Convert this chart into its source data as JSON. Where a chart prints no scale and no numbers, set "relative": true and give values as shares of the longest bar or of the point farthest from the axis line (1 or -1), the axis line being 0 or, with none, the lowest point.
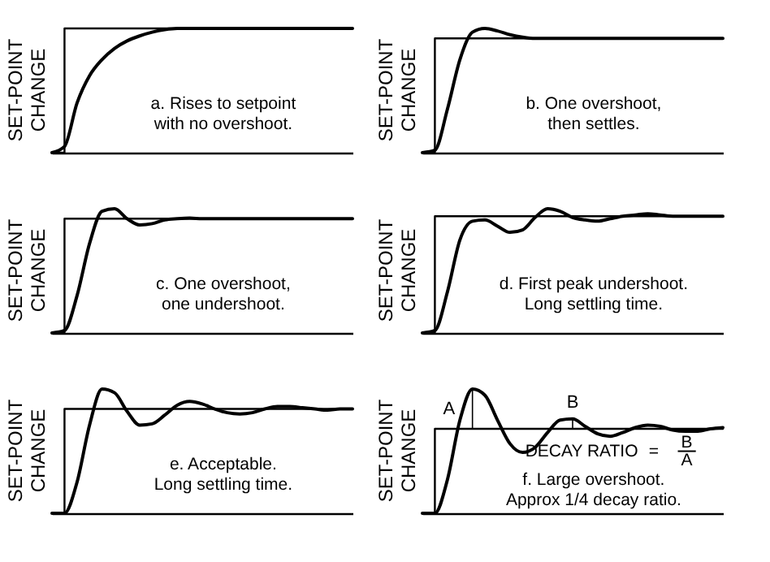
{
  "chart_data": [
    {
      "type": "line",
      "relative": true,
      "legend": false,
      "grid": false,
      "tick_labels": false,
      "ylabel": "SET-POINT\nCHANGE",
      "categories": [
        null,
        null,
        null,
        null,
        null,
        null,
        null,
        null,
        null,
        null,
        null,
        null,
        null,
        null,
        null,
        null,
        null,
        null,
        null,
        null,
        null,
        null,
        null,
        null,
        null
      ],
      "annotations": [
        "a.  Rises to setpoint\nwith no overshoot."
      ],
      "series": [
        {
          "type": "step",
          "color": "#000000",
          "values": [
            0,
            1,
            1,
            1,
            1,
            1,
            1,
            1,
            1,
            1,
            1,
            1,
            1,
            1,
            1,
            1,
            1,
            1,
            1,
            1,
            1,
            1,
            1,
            1,
            1
          ]
        },
        {
          "type": "line",
          "color": "#000000",
          "values": [
            0,
            0.05,
            0.4,
            0.62,
            0.75,
            0.84,
            0.9,
            0.94,
            0.97,
            0.99,
            1,
            1,
            1,
            1,
            1,
            1,
            1,
            1,
            1,
            1,
            1,
            1,
            1,
            1,
            1
          ]
        }
      ]
    },
    {
      "type": "line",
      "relative": true,
      "legend": false,
      "grid": false,
      "tick_labels": false,
      "ylabel": "SET-POINT\nCHANGE",
      "categories": [
        null,
        null,
        null,
        null,
        null,
        null,
        null,
        null,
        null,
        null,
        null,
        null,
        null,
        null,
        null,
        null,
        null,
        null,
        null,
        null,
        null,
        null,
        null,
        null,
        null
      ],
      "annotations": [
        "b.  One overshoot,\nthen settles."
      ],
      "series": [
        {
          "type": "step",
          "color": "#000000",
          "values": [
            0,
            0.92,
            0.92,
            0.92,
            0.92,
            0.92,
            0.92,
            0.92,
            0.92,
            0.92,
            0.92,
            0.92,
            0.92,
            0.92,
            0.92,
            0.92,
            0.92,
            0.92,
            0.92,
            0.92,
            0.92,
            0.92,
            0.92,
            0.92,
            0.92
          ]
        },
        {
          "type": "line",
          "color": "#000000",
          "values": [
            0,
            0.02,
            0.35,
            0.75,
            0.97,
            1,
            0.98,
            0.95,
            0.93,
            0.92,
            0.92,
            0.92,
            0.92,
            0.92,
            0.92,
            0.92,
            0.92,
            0.92,
            0.92,
            0.92,
            0.92,
            0.92,
            0.92,
            0.92,
            0.92
          ]
        }
      ]
    },
    {
      "type": "line",
      "relative": true,
      "legend": false,
      "grid": false,
      "tick_labels": false,
      "ylabel": "SET-POINT\nCHANGE",
      "categories": [
        null,
        null,
        null,
        null,
        null,
        null,
        null,
        null,
        null,
        null,
        null,
        null,
        null,
        null,
        null,
        null,
        null,
        null,
        null,
        null,
        null,
        null,
        null,
        null,
        null
      ],
      "annotations": [
        "c.  One overshoot,\none undershoot."
      ],
      "series": [
        {
          "type": "step",
          "color": "#000000",
          "values": [
            0,
            0.92,
            0.92,
            0.92,
            0.92,
            0.92,
            0.92,
            0.92,
            0.92,
            0.92,
            0.92,
            0.92,
            0.92,
            0.92,
            0.92,
            0.92,
            0.92,
            0.92,
            0.92,
            0.92,
            0.92,
            0.92,
            0.92,
            0.92,
            0.92
          ]
        },
        {
          "type": "line",
          "color": "#000000",
          "values": [
            0,
            0.02,
            0.3,
            0.72,
            0.98,
            1,
            0.92,
            0.87,
            0.88,
            0.91,
            0.92,
            0.925,
            0.92,
            0.92,
            0.92,
            0.92,
            0.92,
            0.92,
            0.92,
            0.92,
            0.92,
            0.92,
            0.92,
            0.92,
            0.92
          ]
        }
      ]
    },
    {
      "type": "line",
      "relative": true,
      "legend": false,
      "grid": false,
      "tick_labels": false,
      "ylabel": "SET-POINT\nCHANGE",
      "categories": [
        null,
        null,
        null,
        null,
        null,
        null,
        null,
        null,
        null,
        null,
        null,
        null,
        null,
        null,
        null,
        null,
        null,
        null,
        null,
        null,
        null,
        null,
        null,
        null,
        null
      ],
      "annotations": [
        "d.  First peak undershoot.\nLong settling time."
      ],
      "series": [
        {
          "type": "step",
          "color": "#000000",
          "values": [
            0,
            0.94,
            0.94,
            0.94,
            0.94,
            0.94,
            0.94,
            0.94,
            0.94,
            0.94,
            0.94,
            0.94,
            0.94,
            0.94,
            0.94,
            0.94,
            0.94,
            0.94,
            0.94,
            0.94,
            0.94,
            0.94,
            0.94,
            0.94,
            0.94
          ]
        },
        {
          "type": "line",
          "color": "#000000",
          "values": [
            0,
            0.02,
            0.33,
            0.75,
            0.9,
            0.91,
            0.86,
            0.81,
            0.83,
            0.93,
            1,
            0.98,
            0.93,
            0.91,
            0.9,
            0.92,
            0.94,
            0.95,
            0.96,
            0.95,
            0.94,
            0.94,
            0.94,
            0.94,
            0.94
          ]
        }
      ]
    },
    {
      "type": "line",
      "relative": true,
      "legend": false,
      "grid": false,
      "tick_labels": false,
      "ylabel": "SET-POINT\nCHANGE",
      "categories": [
        null,
        null,
        null,
        null,
        null,
        null,
        null,
        null,
        null,
        null,
        null,
        null,
        null,
        null,
        null,
        null,
        null,
        null,
        null,
        null,
        null,
        null,
        null,
        null,
        null
      ],
      "annotations": [
        "e.  Acceptable.\nLong settling time."
      ],
      "series": [
        {
          "type": "step",
          "color": "#000000",
          "values": [
            0,
            0.84,
            0.84,
            0.84,
            0.84,
            0.84,
            0.84,
            0.84,
            0.84,
            0.84,
            0.84,
            0.84,
            0.84,
            0.84,
            0.84,
            0.84,
            0.84,
            0.84,
            0.84,
            0.84,
            0.84,
            0.84,
            0.84,
            0.84,
            0.84
          ]
        },
        {
          "type": "line",
          "color": "#000000",
          "values": [
            0,
            0,
            0.25,
            0.71,
            1,
            0.97,
            0.82,
            0.71,
            0.72,
            0.79,
            0.87,
            0.9,
            0.88,
            0.84,
            0.81,
            0.8,
            0.81,
            0.84,
            0.86,
            0.86,
            0.85,
            0.84,
            0.83,
            0.84,
            0.84
          ]
        }
      ]
    },
    {
      "type": "line",
      "relative": true,
      "legend": false,
      "grid": false,
      "tick_labels": false,
      "ylabel": "SET-POINT\nCHANGE",
      "categories": [
        null,
        null,
        null,
        null,
        null,
        null,
        null,
        null,
        null,
        null,
        null,
        null,
        null,
        null,
        null,
        null,
        null,
        null,
        null,
        null,
        null,
        null,
        null,
        null,
        null
      ],
      "annotations": [
        "A",
        "B",
        "DECAY RATIO",
        "=",
        "B",
        "A",
        "f.  Large overshoot.\nApprox 1/4 decay ratio."
      ],
      "series": [
        {
          "type": "step",
          "color": "#000000",
          "values": [
            0,
            0.68,
            0.68,
            0.68,
            0.68,
            0.68,
            0.68,
            0.68,
            0.68,
            0.68,
            0.68,
            0.68,
            0.68,
            0.68,
            0.68,
            0.68,
            0.68,
            0.68,
            0.68,
            0.68,
            0.68,
            0.68,
            0.68,
            0.68,
            0.68
          ]
        },
        {
          "type": "line",
          "color": "#000000",
          "values": [
            0,
            0,
            0.27,
            0.75,
            1,
            0.95,
            0.75,
            0.56,
            0.49,
            0.53,
            0.65,
            0.75,
            0.76,
            0.7,
            0.64,
            0.62,
            0.65,
            0.69,
            0.71,
            0.7,
            0.67,
            0.66,
            0.66,
            0.68,
            0.69
          ]
        }
      ]
    }
  ]
}
